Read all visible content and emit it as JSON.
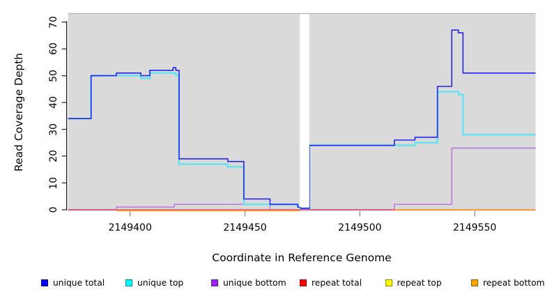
{
  "chart_data": {
    "type": "line",
    "step": true,
    "title": "",
    "xlabel": "Coordinate in Reference Genome",
    "ylabel": "Read Coverage Depth",
    "xlim": [
      2149373,
      2149576.5
    ],
    "ylim": [
      0,
      70
    ],
    "x_ticks": [
      2149400,
      2149450,
      2149500,
      2149550
    ],
    "x_tick_labels": [
      "2149400",
      "2149450",
      "2149500",
      "2149550"
    ],
    "y_ticks": [
      0,
      10,
      20,
      30,
      40,
      50,
      60,
      70
    ],
    "y_tick_labels": [
      "0",
      "10",
      "20",
      "30",
      "40",
      "50",
      "60",
      "70"
    ],
    "grid": false,
    "legend_position": "bottom",
    "panel_background": "#DADADA",
    "gap_region": {
      "from": 2149473.8,
      "to": 2149478,
      "fill": "#FFFFFF"
    },
    "series": [
      {
        "name": "unique total",
        "color": "#2626EE",
        "legend_fill": "#0000FF",
        "legend_border": "#000080",
        "steps": [
          [
            2149373,
            34
          ],
          [
            2149383,
            50
          ],
          [
            2149394,
            51
          ],
          [
            2149404.7,
            50
          ],
          [
            2149408.6,
            52
          ],
          [
            2149418.7,
            53
          ],
          [
            2149419.9,
            52
          ],
          [
            2149421.3,
            19
          ],
          [
            2149442.5,
            18
          ],
          [
            2149449.5,
            4
          ],
          [
            2149460.9,
            2
          ],
          [
            2149473,
            1
          ],
          [
            2149474.2,
            0.5
          ],
          [
            2149478,
            24
          ],
          [
            2149515,
            26
          ],
          [
            2149524,
            27
          ],
          [
            2149533.8,
            46
          ],
          [
            2149540,
            67
          ],
          [
            2149542.9,
            66
          ],
          [
            2149544.9,
            51
          ]
        ]
      },
      {
        "name": "unique top",
        "color": "#63E3F0",
        "legend_fill": "#00FFFF",
        "legend_border": "#008B8B",
        "steps": [
          [
            2149373,
            34
          ],
          [
            2149383,
            50
          ],
          [
            2149404.7,
            49
          ],
          [
            2149408.6,
            51
          ],
          [
            2149419.9,
            50
          ],
          [
            2149421.3,
            17
          ],
          [
            2149442.5,
            16
          ],
          [
            2149449.5,
            2
          ],
          [
            2149473,
            1
          ],
          [
            2149474.2,
            0.5
          ],
          [
            2149478,
            24
          ],
          [
            2149524,
            25
          ],
          [
            2149533.8,
            44
          ],
          [
            2149542.9,
            43
          ],
          [
            2149544.9,
            28
          ]
        ]
      },
      {
        "name": "unique bottom",
        "color": "#B671DC",
        "legend_fill": "#A020F0",
        "legend_border": "#551A8B",
        "steps": [
          [
            2149373,
            0
          ],
          [
            2149394,
            1
          ],
          [
            2149419.2,
            2
          ],
          [
            2149460.9,
            0
          ],
          [
            2149515,
            2
          ],
          [
            2149540,
            23
          ]
        ]
      },
      {
        "name": "repeat total",
        "color": "#E04E73",
        "legend_fill": "#FF0000",
        "legend_border": "#8B0000",
        "steps": [
          [
            2149373,
            0
          ]
        ]
      },
      {
        "name": "repeat top",
        "color": "#FFFF33",
        "legend_fill": "#FFFF00",
        "legend_border": "#8B8B00",
        "steps": [
          [
            2149373,
            0
          ]
        ]
      },
      {
        "name": "repeat bottom",
        "color": "#FFA11E",
        "legend_fill": "#FFA500",
        "legend_border": "#8B5A00",
        "segments": [
          {
            "from": 2149394,
            "to": 2149473.8,
            "value": 0
          },
          {
            "from": 2149515,
            "to": 2149576.5,
            "value": 0
          }
        ]
      }
    ]
  }
}
